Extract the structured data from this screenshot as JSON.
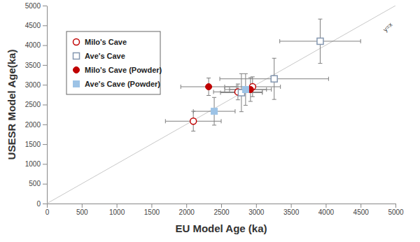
{
  "chart_data": {
    "type": "scatter",
    "x_label": "EU Model Age (ka)",
    "y_label": "USESR Model Age(ka)",
    "xlim": [
      0,
      5000
    ],
    "ylim": [
      0,
      5000
    ],
    "xticks": [
      0,
      500,
      1000,
      1500,
      2000,
      2500,
      3000,
      3500,
      4000,
      4500,
      5000
    ],
    "yticks": [
      0,
      500,
      1000,
      1500,
      2000,
      2500,
      3000,
      3500,
      4000,
      4500,
      5000
    ],
    "grid": false,
    "legend": "top-left",
    "reference_line": {
      "label": "y=x"
    },
    "series": [
      {
        "name": "Milo's Cave",
        "color": "#c00000",
        "marker": "circle-open",
        "x": [
          2100,
          2740,
          2950
        ],
        "values": [
          2080,
          2820,
          2950
        ],
        "x_error": [
          400,
          350,
          400
        ],
        "y_error": [
          250,
          200,
          250
        ]
      },
      {
        "name": "Ave's Cave",
        "color": "#8497b0",
        "marker": "square-open",
        "x": [
          3920,
          3260,
          2790
        ],
        "values": [
          4100,
          3150,
          2800
        ],
        "x_error": [
          580,
          780,
          300
        ],
        "y_error": [
          560,
          520,
          480
        ]
      },
      {
        "name": "Milo's Cave (Powder)",
        "color": "#c00000",
        "marker": "circle",
        "x": [
          2320,
          2920
        ],
        "values": [
          2950,
          2880
        ],
        "x_error": [
          400,
          300
        ],
        "y_error": [
          220,
          300
        ]
      },
      {
        "name": "Ave's Cave (Powder)",
        "color": "#9dc3e6",
        "marker": "square",
        "x": [
          2400,
          2850
        ],
        "values": [
          2330,
          2880
        ],
        "x_error": [
          300,
          300
        ],
        "y_error": [
          350,
          400
        ]
      }
    ]
  }
}
